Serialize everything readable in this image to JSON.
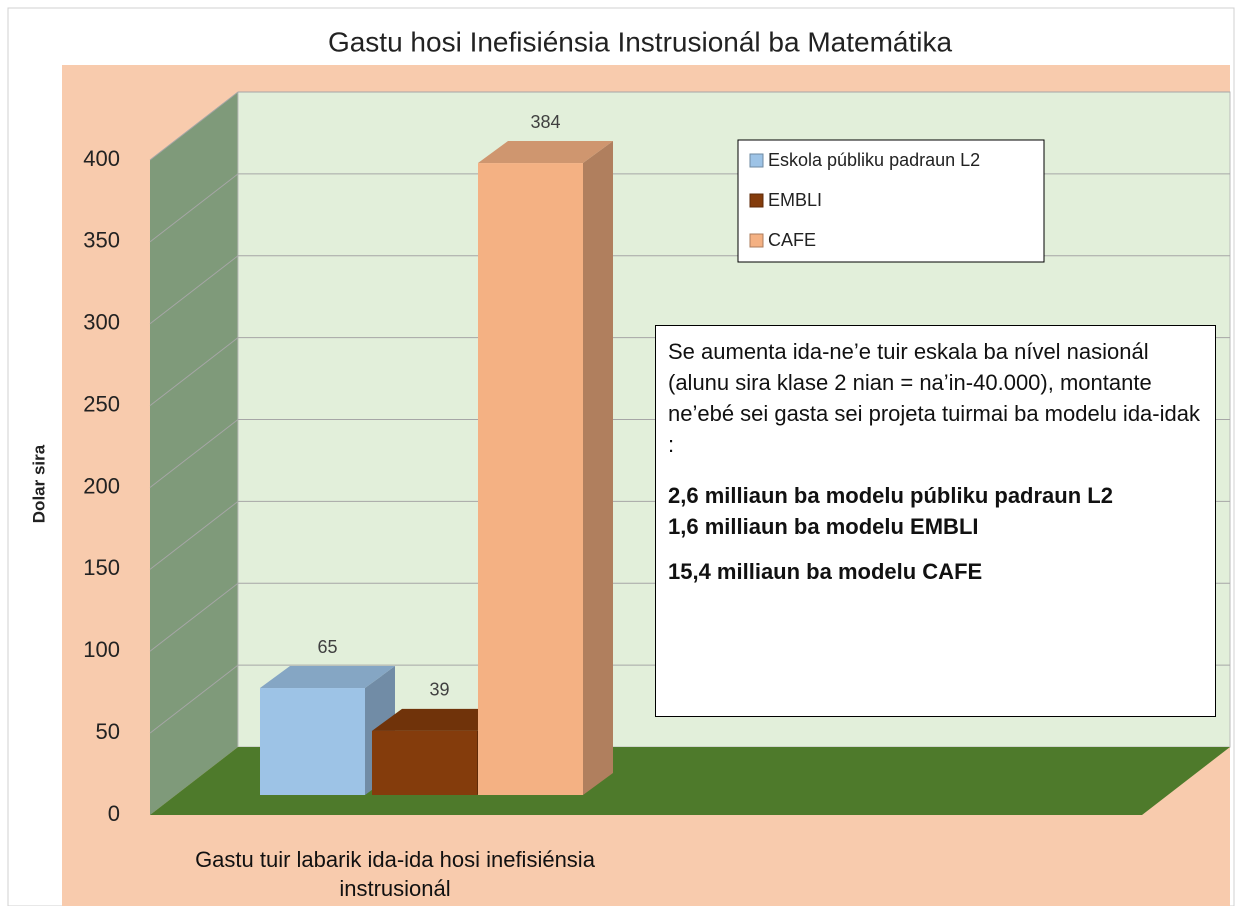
{
  "chart_data": {
    "type": "bar3d",
    "title": "Gastu hosi Inefisiénsia Instrusionál ba Matemátika",
    "y_label": "Dolar sira",
    "categories": [
      "Gastu tuir labarik ida-ida hosi inefisiénsia instrusionál"
    ],
    "series": [
      {
        "name": "Eskola públiku padraun L2",
        "color": "#9dc3e6",
        "values": [
          65
        ]
      },
      {
        "name": "EMBLI",
        "color": "#843c0c",
        "values": [
          39
        ]
      },
      {
        "name": "CAFE",
        "color": "#f4b183",
        "values": [
          384
        ]
      }
    ],
    "ylim": [
      0,
      400
    ],
    "yticks": [
      0,
      50,
      100,
      150,
      200,
      250,
      300,
      350,
      400
    ],
    "grid": true,
    "legend": "top-right",
    "annotation": {
      "text": "Se aumenta ida-ne’e tuir eskala ba nível nasionál (alunu sira klase 2 nian = na’in-40.000), montante ne’ebé sei gasta sei projeta tuirmai ba modelu ida-idak :",
      "lines": [
        "2,6 milliaun ba modelu públiku padraun L2",
        "1,6 milliaun ba modelu EMBLI",
        "15,4 milliaun ba modelu CAFE"
      ]
    }
  }
}
